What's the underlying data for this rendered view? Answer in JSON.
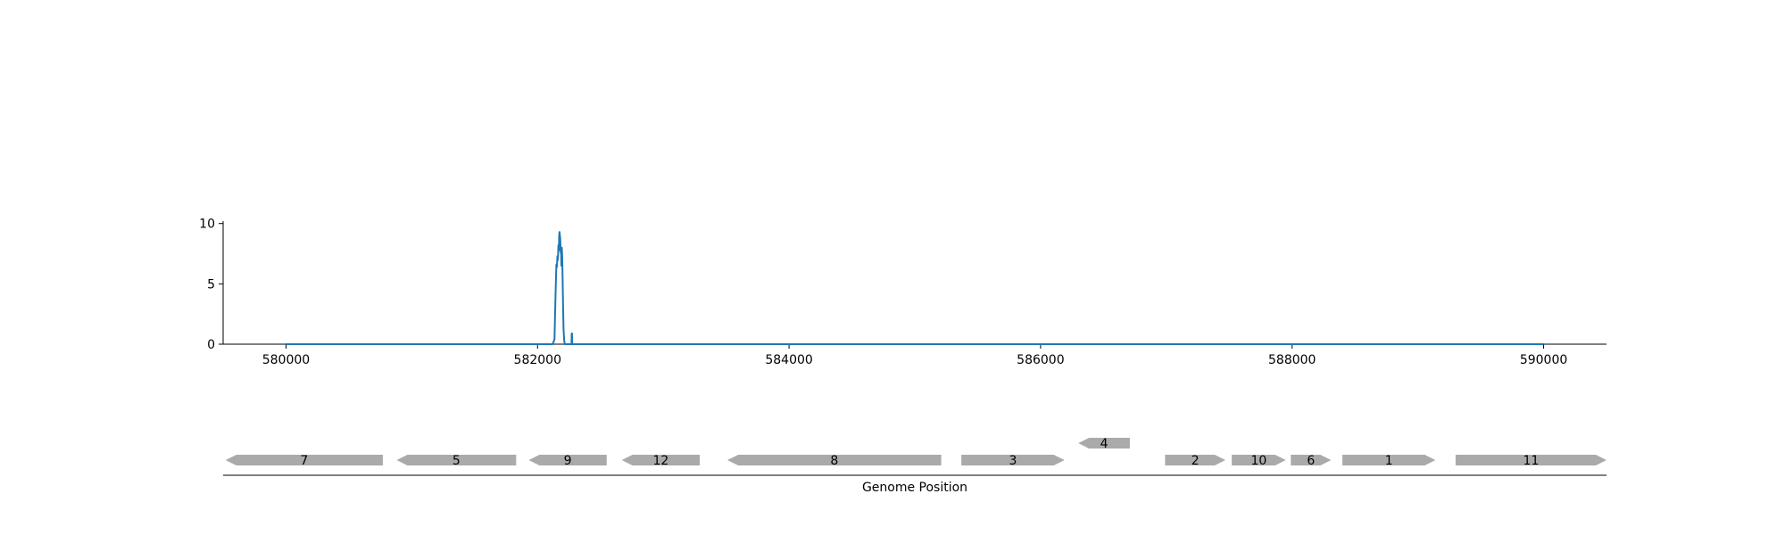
{
  "chart_data": [
    {
      "type": "line",
      "xlim": [
        579500,
        590500
      ],
      "ylim": [
        0,
        10.2
      ],
      "x_ticks": [
        580000,
        582000,
        584000,
        586000,
        588000,
        590000
      ],
      "x_tick_labels": [
        "580000",
        "582000",
        "584000",
        "586000",
        "588000",
        "590000"
      ],
      "y_ticks": [
        0,
        5,
        10
      ],
      "y_tick_labels": [
        "0",
        "5",
        "10"
      ],
      "grid": false,
      "line_color": "#1f77b4",
      "series": [
        {
          "x": [
            580000,
            582120,
            582135,
            582138,
            582142,
            582146,
            582150,
            582154,
            582158,
            582162,
            582166,
            582170,
            582172,
            582175,
            582178,
            582181,
            582184,
            582187,
            582190,
            582193,
            582196,
            582199,
            582203,
            582207,
            582212,
            582217,
            582225,
            582270,
            582272,
            582274,
            582276,
            582280,
            590000
          ],
          "y": [
            0,
            0,
            0.4,
            1.8,
            3.6,
            5.2,
            6.6,
            6.4,
            7.3,
            7.0,
            8.2,
            7.8,
            9.0,
            9.3,
            9.0,
            8.7,
            7.6,
            7.9,
            6.5,
            8.0,
            7.3,
            5.8,
            3.2,
            1.2,
            0.3,
            0,
            0,
            0,
            0.9,
            0.9,
            0,
            0,
            0
          ]
        }
      ]
    },
    {
      "type": "gene_map",
      "xlabel": "Genome Position",
      "xlim": [
        579500,
        590500
      ],
      "feature_color": "#aaaaaa",
      "features": [
        {
          "label": "7",
          "start": 579520,
          "end": 580770,
          "strand": -1,
          "row": 0
        },
        {
          "label": "5",
          "start": 580880,
          "end": 581830,
          "strand": -1,
          "row": 0
        },
        {
          "label": "9",
          "start": 581930,
          "end": 582550,
          "strand": -1,
          "row": 0
        },
        {
          "label": "12",
          "start": 582670,
          "end": 583290,
          "strand": -1,
          "row": 0
        },
        {
          "label": "8",
          "start": 583510,
          "end": 585210,
          "strand": -1,
          "row": 0
        },
        {
          "label": "3",
          "start": 585370,
          "end": 586190,
          "strand": 1,
          "row": 0
        },
        {
          "label": "4",
          "start": 586300,
          "end": 586710,
          "strand": -1,
          "row": 1
        },
        {
          "label": "2",
          "start": 586990,
          "end": 587470,
          "strand": 1,
          "row": 0
        },
        {
          "label": "10",
          "start": 587520,
          "end": 587950,
          "strand": 1,
          "row": 0
        },
        {
          "label": "6",
          "start": 587990,
          "end": 588310,
          "strand": 1,
          "row": 0
        },
        {
          "label": "1",
          "start": 588400,
          "end": 589140,
          "strand": 1,
          "row": 0
        },
        {
          "label": "11",
          "start": 589300,
          "end": 590500,
          "strand": 1,
          "row": 0
        }
      ]
    }
  ]
}
